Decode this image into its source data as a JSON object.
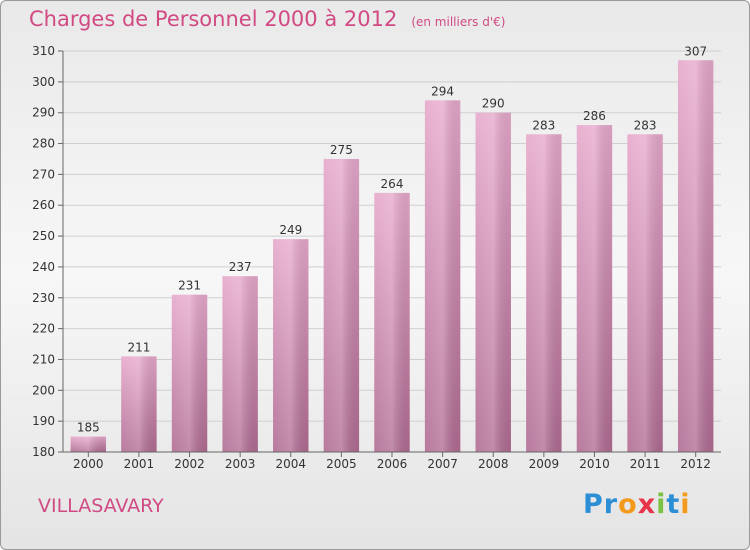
{
  "title": "Charges de Personnel 2000 à 2012",
  "unit": "(en milliers d'€)",
  "location": "VILLASAVARY",
  "brand": {
    "letters": [
      {
        "ch": "P",
        "color": "#2c8fd6"
      },
      {
        "ch": "r",
        "color": "#2c8fd6"
      },
      {
        "ch": "o",
        "color": "#f39a1d"
      },
      {
        "ch": "x",
        "color": "#e8344a"
      },
      {
        "ch": "i",
        "color": "#7cc242"
      },
      {
        "ch": "t",
        "color": "#2c8fd6"
      },
      {
        "ch": "i",
        "color": "#f39a1d"
      }
    ]
  },
  "chart_data": {
    "type": "bar",
    "title": "Charges de Personnel 2000 à 2012",
    "ylabel": "",
    "xlabel": "",
    "categories": [
      "2000",
      "2001",
      "2002",
      "2003",
      "2004",
      "2005",
      "2006",
      "2007",
      "2008",
      "2009",
      "2010",
      "2011",
      "2012"
    ],
    "values": [
      185,
      211,
      231,
      237,
      249,
      275,
      264,
      294,
      290,
      283,
      286,
      283,
      307
    ],
    "ylim": [
      180,
      310
    ],
    "yticks": [
      180,
      190,
      200,
      210,
      220,
      230,
      240,
      250,
      260,
      270,
      280,
      290,
      300,
      310
    ],
    "grid": true,
    "bar_color": "#d98fb6"
  }
}
